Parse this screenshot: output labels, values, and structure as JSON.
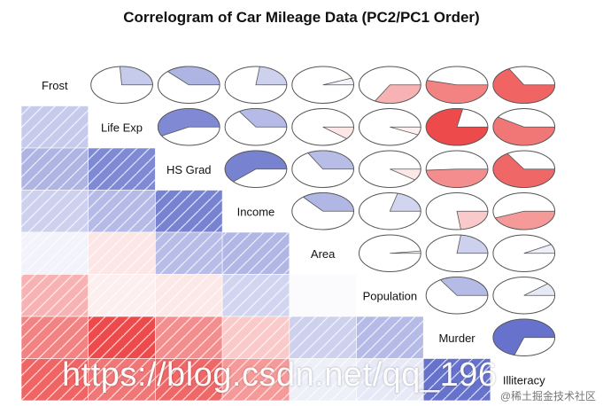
{
  "chart_data": {
    "type": "heatmap",
    "title": "Correlogram of Car Mileage Data (PC2/PC1 Order)",
    "variables": [
      "Frost",
      "Life Exp",
      "HS Grad",
      "Income",
      "Area",
      "Population",
      "Murder",
      "Illiteracy"
    ],
    "matrix": [
      [
        1.0,
        0.26,
        0.37,
        0.23,
        0.06,
        -0.33,
        -0.54,
        -0.67
      ],
      [
        0.26,
        1.0,
        0.58,
        0.34,
        -0.11,
        -0.07,
        -0.78,
        -0.59
      ],
      [
        0.37,
        0.58,
        1.0,
        0.62,
        0.33,
        -0.1,
        -0.49,
        -0.66
      ],
      [
        0.23,
        0.34,
        0.62,
        1.0,
        0.36,
        0.21,
        -0.23,
        -0.44
      ],
      [
        0.06,
        -0.11,
        0.33,
        0.36,
        1.0,
        0.02,
        0.23,
        0.08
      ],
      [
        -0.33,
        -0.07,
        -0.1,
        0.21,
        0.02,
        1.0,
        0.34,
        0.11
      ],
      [
        -0.54,
        -0.78,
        -0.49,
        -0.23,
        0.23,
        0.34,
        1.0,
        0.7
      ],
      [
        -0.67,
        -0.59,
        -0.66,
        -0.44,
        0.08,
        0.11,
        0.7,
        1.0
      ]
    ],
    "lower_panel": "shade",
    "upper_panel": "pie",
    "diagonal_panel": "labels",
    "color_positive": "#2436b4",
    "color_negative": "#e81818",
    "range": [
      -1,
      1
    ]
  },
  "watermark": "https://blog.csdn.net/qq_196",
  "source_tag": "@稀土掘金技术社区"
}
